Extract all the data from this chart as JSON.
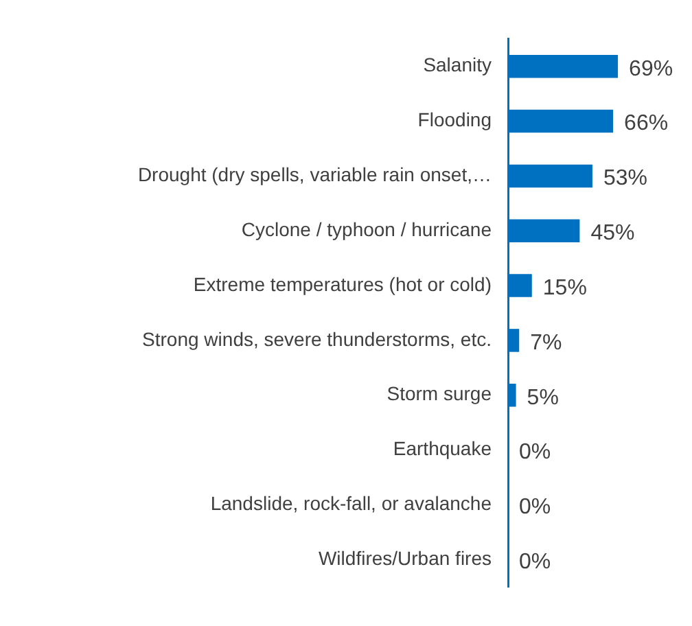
{
  "chart_data": {
    "type": "bar",
    "orientation": "horizontal",
    "categories": [
      "Salanity",
      "Flooding",
      "Drought (dry spells, variable rain onset,…",
      "Cyclone / typhoon / hurricane",
      "Extreme temperatures (hot or cold)",
      "Strong winds, severe thunderstorms, etc.",
      "Storm surge",
      "Earthquake",
      "Landslide, rock-fall, or avalanche",
      "Wildfires/Urban fires"
    ],
    "values": [
      69,
      66,
      53,
      45,
      15,
      7,
      5,
      0,
      0,
      0
    ],
    "value_labels": [
      "69%",
      "66%",
      "53%",
      "45%",
      "15%",
      "7%",
      "5%",
      "0%",
      "0%",
      "0%"
    ],
    "color": "#0070c0",
    "legend": false
  }
}
